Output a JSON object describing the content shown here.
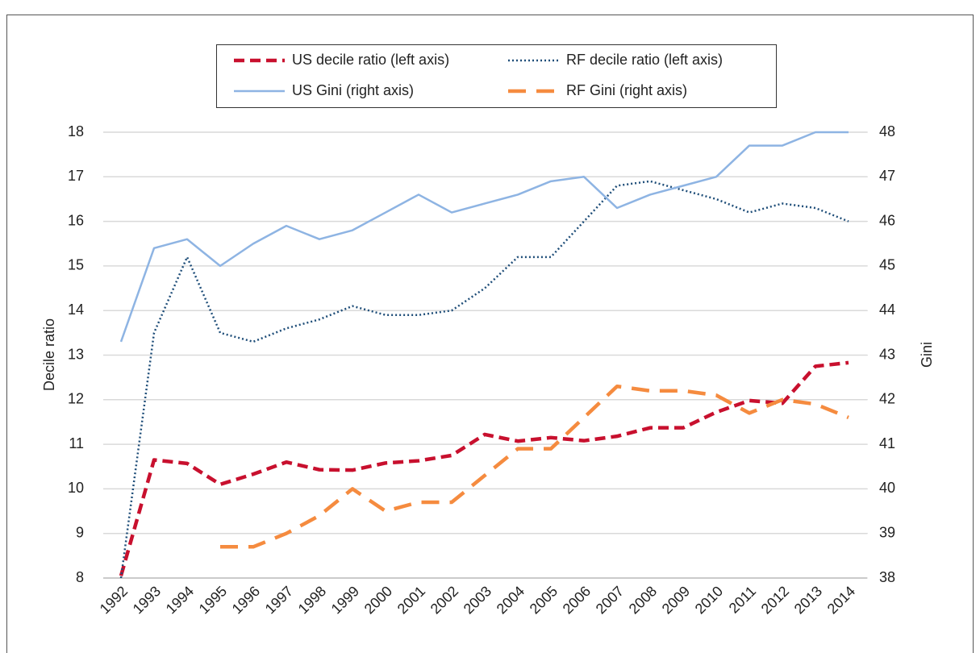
{
  "chart_data": {
    "type": "line",
    "categories": [
      "1992",
      "1993",
      "1994",
      "1995",
      "1996",
      "1997",
      "1998",
      "1999",
      "2000",
      "2001",
      "2002",
      "2003",
      "2004",
      "2005",
      "2006",
      "2007",
      "2008",
      "2009",
      "2010",
      "2011",
      "2012",
      "2013",
      "2014"
    ],
    "y_label": "Decile ratio",
    "y2_label": "Gini",
    "ylim": [
      8,
      18
    ],
    "yticks": [
      8,
      9,
      10,
      11,
      12,
      13,
      14,
      15,
      16,
      17,
      18
    ],
    "y2lim": [
      38,
      48
    ],
    "y2ticks": [
      38,
      39,
      40,
      41,
      42,
      43,
      44,
      45,
      46,
      47,
      48
    ],
    "grid": true,
    "legend": "top",
    "series": [
      {
        "name": "US decile ratio (left axis)",
        "color": "#c8102e",
        "style": "dashed",
        "axis": "y",
        "values": [
          8.05,
          10.65,
          10.57,
          10.1,
          10.33,
          10.6,
          10.43,
          10.42,
          10.58,
          10.63,
          10.75,
          11.22,
          11.07,
          11.15,
          11.08,
          11.18,
          11.37,
          11.37,
          11.72,
          11.98,
          11.92,
          12.75,
          12.83
        ]
      },
      {
        "name": "RF decile ratio (left axis)",
        "color": "#1f4e79",
        "style": "dotted",
        "axis": "y",
        "values": [
          8.0,
          13.5,
          15.2,
          13.5,
          13.3,
          13.6,
          13.8,
          14.1,
          13.9,
          13.9,
          14.0,
          14.5,
          15.2,
          15.2,
          16.0,
          16.8,
          16.9,
          16.7,
          16.5,
          16.2,
          16.4,
          16.3,
          16.0
        ]
      },
      {
        "name": "US Gini (right axis)",
        "color": "#8eb4e3",
        "style": "solid",
        "axis": "y2",
        "values": [
          43.3,
          45.4,
          45.6,
          45.0,
          45.5,
          45.9,
          45.6,
          45.8,
          46.2,
          46.6,
          46.2,
          46.4,
          46.6,
          46.9,
          47.0,
          46.3,
          46.6,
          46.8,
          47.0,
          47.7,
          47.7,
          48.0,
          48.0
        ]
      },
      {
        "name": "RF Gini (right axis)",
        "color": "#f58b3f",
        "style": "long-dashed",
        "axis": "y2",
        "values": [
          null,
          null,
          null,
          38.7,
          38.7,
          39.0,
          39.4,
          40.0,
          39.5,
          39.7,
          39.7,
          40.3,
          40.9,
          40.9,
          41.6,
          42.3,
          42.2,
          42.2,
          42.1,
          41.7,
          42.0,
          41.9,
          41.6
        ]
      }
    ]
  }
}
